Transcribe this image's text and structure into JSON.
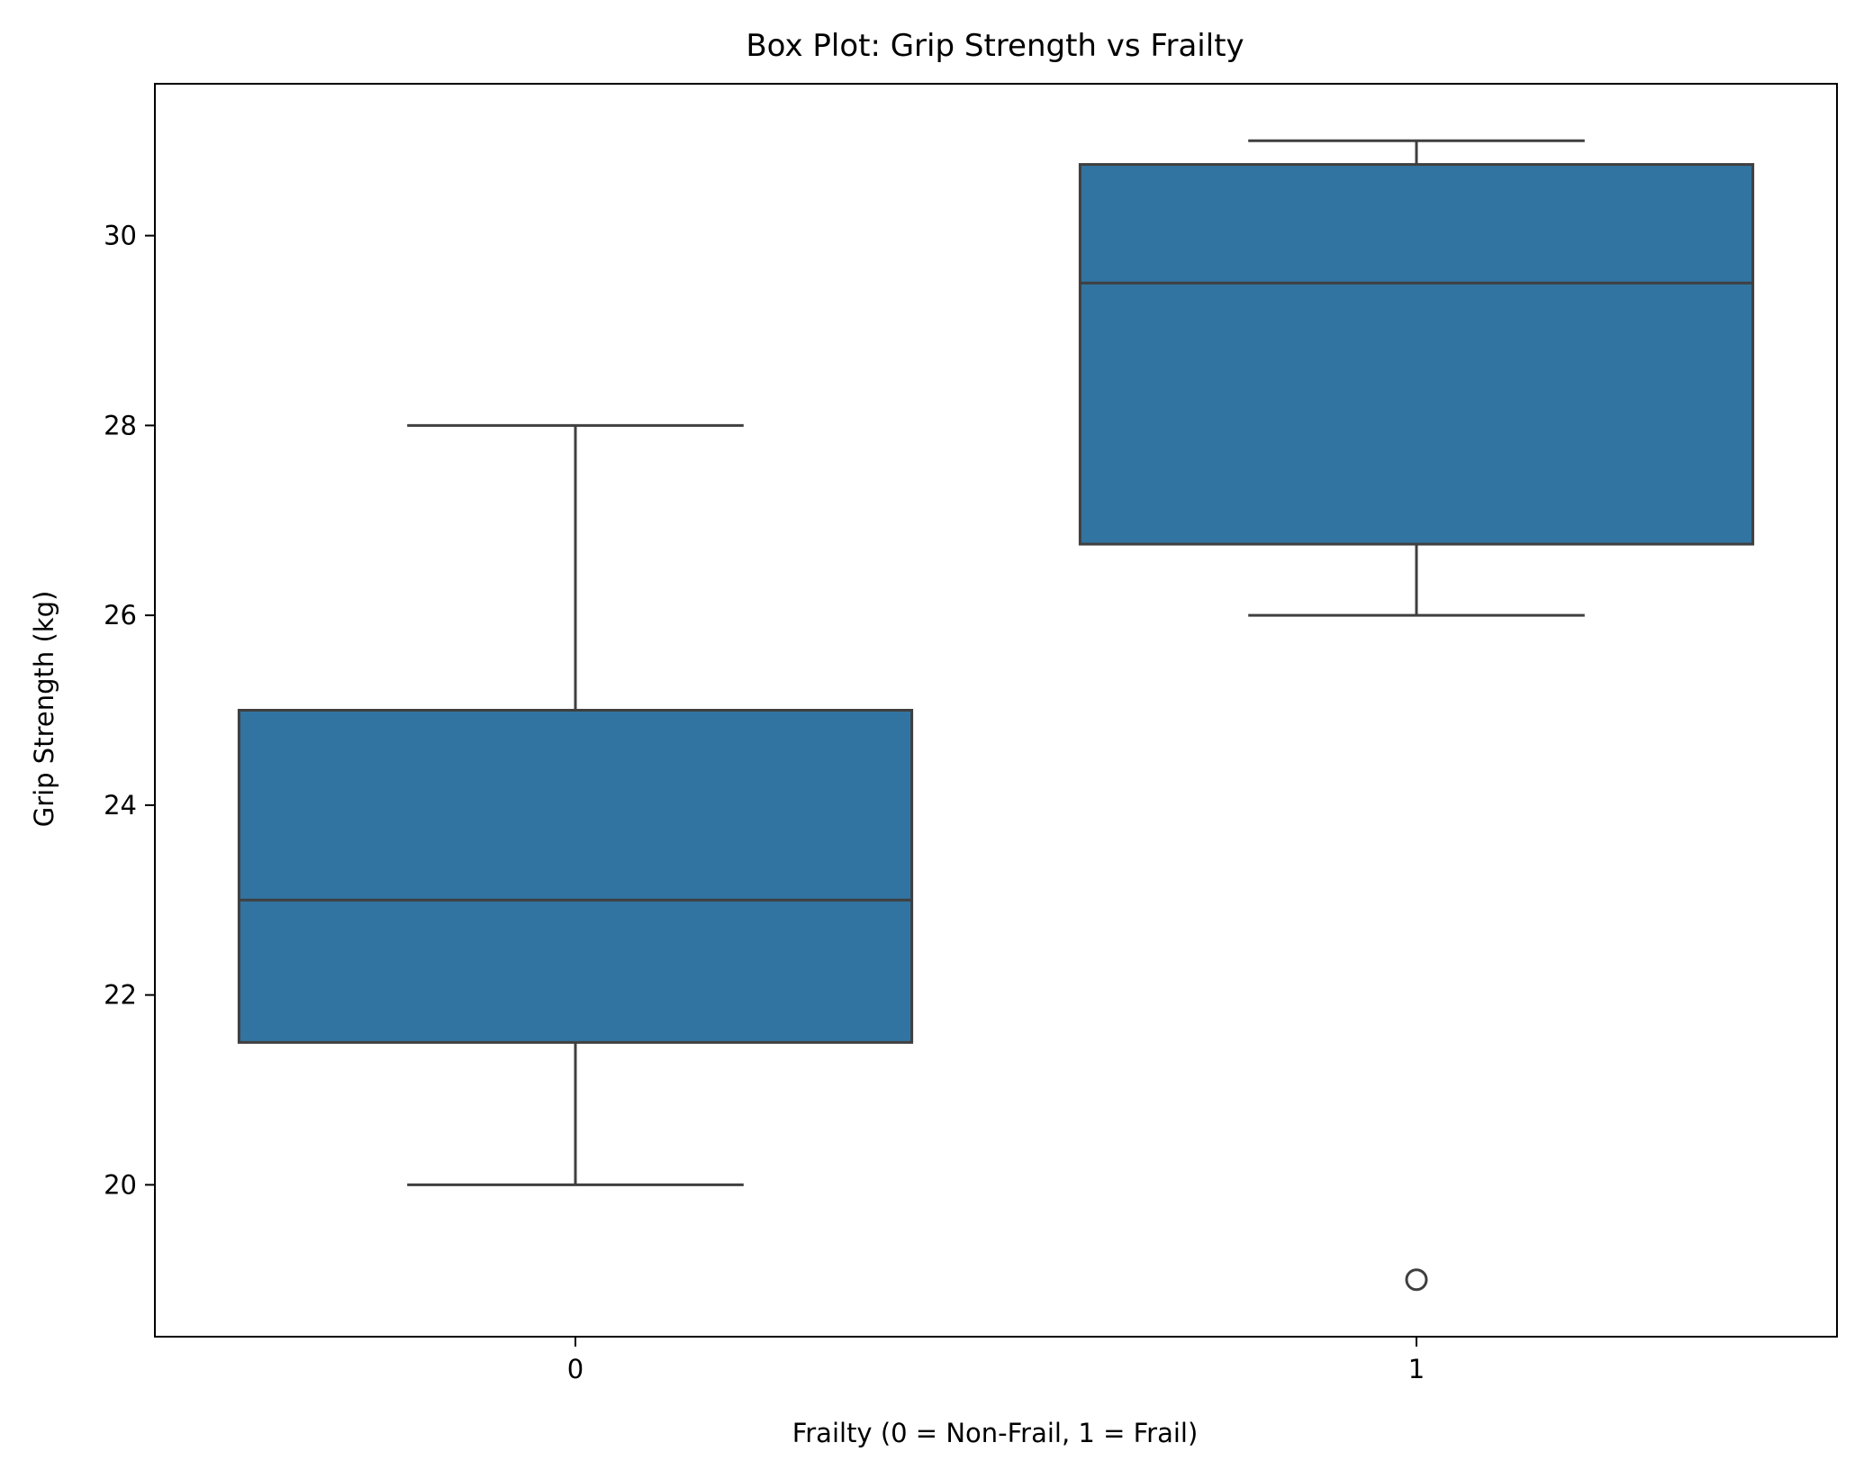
{
  "chart_data": {
    "type": "box",
    "title": "Box Plot: Grip Strength vs Frailty",
    "xlabel": "Frailty (0 = Non-Frail, 1 = Frail)",
    "ylabel": "Grip Strength (kg)",
    "categories": [
      "0",
      "1"
    ],
    "boxes": [
      {
        "category": "0",
        "whisker_low": 20,
        "q1": 21.5,
        "median": 23,
        "q3": 25,
        "whisker_high": 28,
        "outliers": []
      },
      {
        "category": "1",
        "whisker_low": 26,
        "q1": 26.75,
        "median": 29.5,
        "q3": 30.75,
        "whisker_high": 31,
        "outliers": [
          19
        ]
      }
    ],
    "ylim": [
      18.4,
      31.6
    ],
    "yticks": [
      20,
      22,
      24,
      26,
      28,
      30
    ],
    "grid": false,
    "colors": {
      "box_fill": "#3274a1",
      "box_edge": "#3f3f3f",
      "axis": "#000000"
    }
  }
}
